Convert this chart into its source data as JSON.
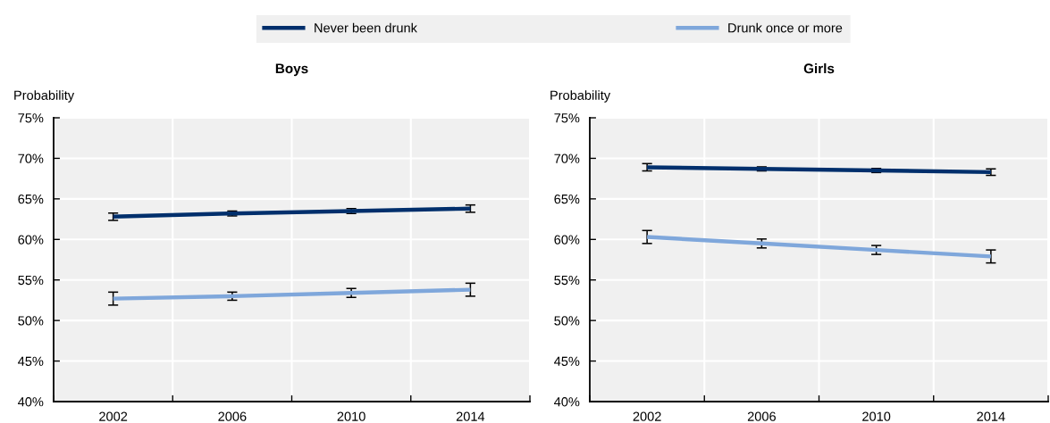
{
  "chart_data": [
    {
      "type": "line",
      "title": "Boys",
      "ylabel": "Probability",
      "categories": [
        "2002",
        "2006",
        "2010",
        "2014"
      ],
      "series": [
        {
          "name": "Never been drunk",
          "color": "#002f6c",
          "values": [
            62.8,
            63.2,
            63.5,
            63.8
          ],
          "errors": [
            0.45,
            0.3,
            0.3,
            0.45
          ]
        },
        {
          "name": "Drunk once or more",
          "color": "#7fa7db",
          "values": [
            52.7,
            53.0,
            53.4,
            53.8
          ],
          "errors": [
            0.8,
            0.5,
            0.55,
            0.8
          ]
        }
      ],
      "ylim": [
        40,
        75
      ],
      "yticks": [
        {
          "value": 40,
          "label": "40%"
        },
        {
          "value": 45,
          "label": "45%"
        },
        {
          "value": 50,
          "label": "50%"
        },
        {
          "value": 55,
          "label": "55%"
        },
        {
          "value": 60,
          "label": "60%"
        },
        {
          "value": 65,
          "label": "65%"
        },
        {
          "value": 70,
          "label": "70%"
        },
        {
          "value": 75,
          "label": "75%"
        }
      ],
      "grid": true,
      "legend": "top",
      "line_style": "solid"
    },
    {
      "type": "line",
      "title": "Girls",
      "ylabel": "Probability",
      "categories": [
        "2002",
        "2006",
        "2010",
        "2014"
      ],
      "series": [
        {
          "color": "#002f6c",
          "values": [
            68.9,
            68.7,
            68.5,
            68.3
          ],
          "errors": [
            0.45,
            0.25,
            0.25,
            0.4
          ]
        },
        {
          "color": "#7fa7db",
          "values": [
            60.3,
            59.5,
            58.7,
            57.9
          ],
          "errors": [
            0.8,
            0.55,
            0.55,
            0.8
          ]
        }
      ],
      "ylim": [
        40,
        75
      ],
      "yticks": [
        {
          "value": 40,
          "label": "40%"
        },
        {
          "value": 45,
          "label": "45%"
        },
        {
          "value": 50,
          "label": "50%"
        },
        {
          "value": 55,
          "label": "55%"
        },
        {
          "value": 60,
          "label": "60%"
        },
        {
          "value": 65,
          "label": "65%"
        },
        {
          "value": 70,
          "label": "70%"
        },
        {
          "value": 75,
          "label": "75%"
        }
      ],
      "grid": true,
      "line_style": "solid"
    }
  ]
}
